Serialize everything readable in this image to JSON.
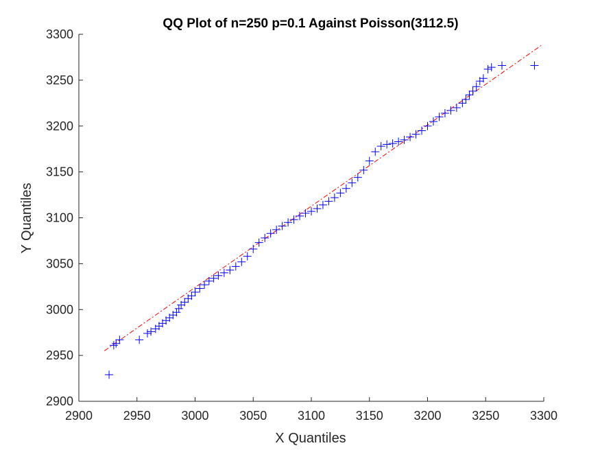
{
  "chart_data": {
    "type": "scatter",
    "title": "QQ Plot of n=250 p=0.1 Against Poisson(3112.5)",
    "xlabel": "X Quantiles",
    "ylabel": "Y Quantiles",
    "xlim": [
      2900,
      3300
    ],
    "ylim": [
      2900,
      3300
    ],
    "xticks": [
      2900,
      2950,
      3000,
      3050,
      3100,
      3150,
      3200,
      3250,
      3300
    ],
    "yticks": [
      2900,
      2950,
      3000,
      3050,
      3100,
      3150,
      3200,
      3250,
      3300
    ],
    "grid": false,
    "marker": "+",
    "marker_color": "#0000ff",
    "reference_line": {
      "style": "dash-dot",
      "color": "#ff0000",
      "x": [
        2922,
        3298
      ],
      "y": [
        2955,
        3288
      ]
    },
    "series": [
      {
        "x": [
          2926,
          2930,
          2932,
          2935,
          2952,
          2959,
          2962,
          2966,
          2969,
          2972,
          2975,
          2978,
          2981,
          2984,
          2986,
          2988,
          2991,
          2994,
          2997,
          3000,
          3004,
          3008,
          3012,
          3016,
          3020,
          3025,
          3030,
          3035,
          3040,
          3045,
          3050,
          3055,
          3060,
          3065,
          3070,
          3075,
          3080,
          3085,
          3090,
          3095,
          3100,
          3105,
          3110,
          3115,
          3120,
          3125,
          3130,
          3135,
          3140,
          3145,
          3150,
          3155,
          3160,
          3165,
          3170,
          3175,
          3180,
          3185,
          3190,
          3195,
          3200,
          3205,
          3210,
          3215,
          3220,
          3225,
          3230,
          3233,
          3236,
          3239,
          3242,
          3245,
          3248,
          3252,
          3255,
          3264,
          3292
        ],
        "y": [
          2929,
          2961,
          2963,
          2967,
          2967,
          2974,
          2976,
          2979,
          2982,
          2985,
          2988,
          2991,
          2994,
          2997,
          3001,
          3005,
          3008,
          3012,
          3015,
          3019,
          3023,
          3027,
          3031,
          3034,
          3037,
          3040,
          3043,
          3047,
          3052,
          3058,
          3066,
          3073,
          3078,
          3083,
          3087,
          3091,
          3095,
          3098,
          3102,
          3105,
          3107,
          3110,
          3114,
          3118,
          3122,
          3127,
          3132,
          3138,
          3144,
          3152,
          3162,
          3172,
          3178,
          3180,
          3181,
          3183,
          3185,
          3188,
          3191,
          3195,
          3200,
          3205,
          3210,
          3214,
          3217,
          3220,
          3225,
          3229,
          3234,
          3238,
          3243,
          3249,
          3252,
          3262,
          3264,
          3266,
          3266
        ]
      }
    ]
  }
}
